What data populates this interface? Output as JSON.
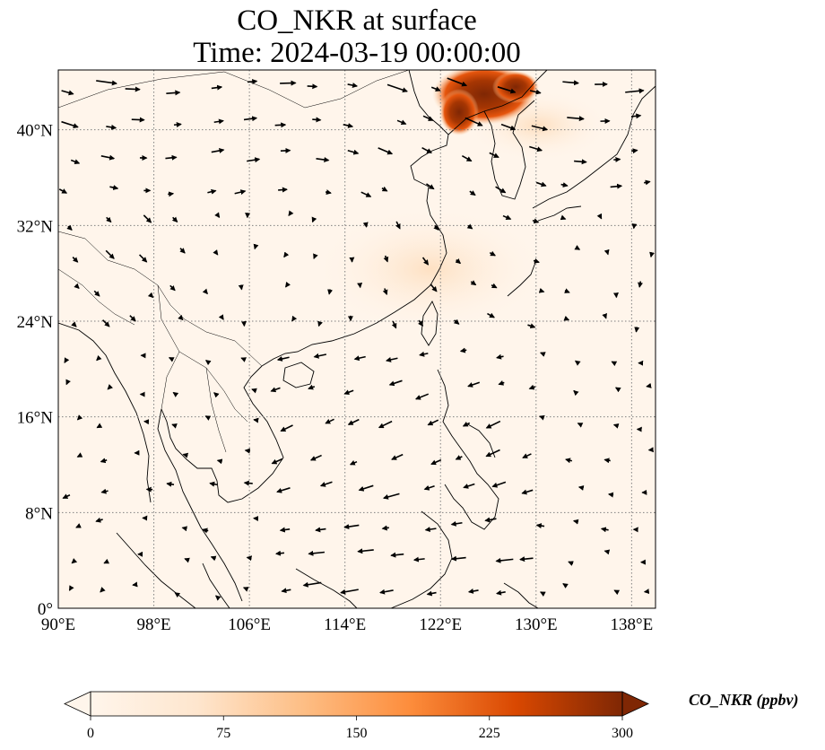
{
  "title": {
    "line1": "CO_NKR at surface",
    "line2": "Time: 2024-03-19 00:00:00"
  },
  "map": {
    "projection": "PlateCarree",
    "lon_range": [
      90,
      140
    ],
    "lat_range": [
      0,
      45
    ],
    "gridlines": "dotted",
    "x_ticks": [
      {
        "value": 90,
        "label": "90°E"
      },
      {
        "value": 98,
        "label": "98°E"
      },
      {
        "value": 106,
        "label": "106°E"
      },
      {
        "value": 114,
        "label": "114°E"
      },
      {
        "value": 122,
        "label": "122°E"
      },
      {
        "value": 130,
        "label": "130°E"
      },
      {
        "value": 138,
        "label": "138°E"
      }
    ],
    "y_ticks": [
      {
        "value": 0,
        "label": "0°"
      },
      {
        "value": 8,
        "label": "8°N"
      },
      {
        "value": 16,
        "label": "16°N"
      },
      {
        "value": 24,
        "label": "24°N"
      },
      {
        "value": 32,
        "label": "32°N"
      },
      {
        "value": 40,
        "label": "40°N"
      }
    ],
    "field_description_note": "background field near-zero CO_NKR everywhere except high concentration over NE China / Korean peninsula",
    "hotspots": [
      {
        "lon": 125.5,
        "lat": 43.5,
        "value": 300
      },
      {
        "lon": 123.5,
        "lat": 41.5,
        "value": 240
      },
      {
        "lon": 127.5,
        "lat": 43.2,
        "value": 220
      },
      {
        "lon": 126.5,
        "lat": 38.0,
        "value": 30
      },
      {
        "lon": 122.5,
        "lat": 30.0,
        "value": 12
      }
    ]
  },
  "colorbar": {
    "label": "CO_NKR (ppbv)",
    "min": 0,
    "max": 300,
    "ticks": [
      "0",
      "75",
      "150",
      "225",
      "300"
    ],
    "extend": "both",
    "colors": [
      "#fff5eb",
      "#fdd9b4",
      "#fda762",
      "#f3701b",
      "#c54102",
      "#7f2704"
    ]
  }
}
